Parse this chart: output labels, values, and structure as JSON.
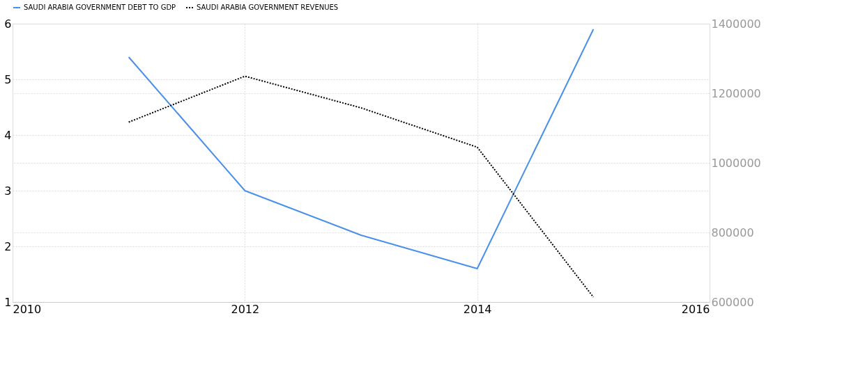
{
  "chart_data": {
    "type": "line",
    "x": [
      2011,
      2012,
      2013,
      2014,
      2015
    ],
    "series": [
      {
        "name": "SAUDI ARABIA GOVERNMENT DEBT TO GDP",
        "color": "#4a90e8",
        "values": [
          5.4,
          3.0,
          2.2,
          1.6,
          5.9
        ],
        "line_style": "solid"
      },
      {
        "name": "SAUDI ARABIA GOVERNMENT REVENUES",
        "color": "#000000",
        "values": [
          1117000,
          1249000,
          1158000,
          1045000,
          614000
        ],
        "axis": "y2",
        "line_style": "dotted"
      }
    ],
    "xlim": [
      2010,
      2016
    ],
    "xticks": [
      2010,
      2012,
      2014,
      2016
    ],
    "ylim": [
      1,
      6
    ],
    "yticks": [
      1,
      2,
      3,
      4,
      5,
      6
    ],
    "y2lim": [
      600000,
      1400000
    ],
    "y2ticks": [
      600000,
      800000,
      1000000,
      1200000,
      1400000
    ],
    "grid": true,
    "legend": "top left",
    "marker": "none"
  }
}
